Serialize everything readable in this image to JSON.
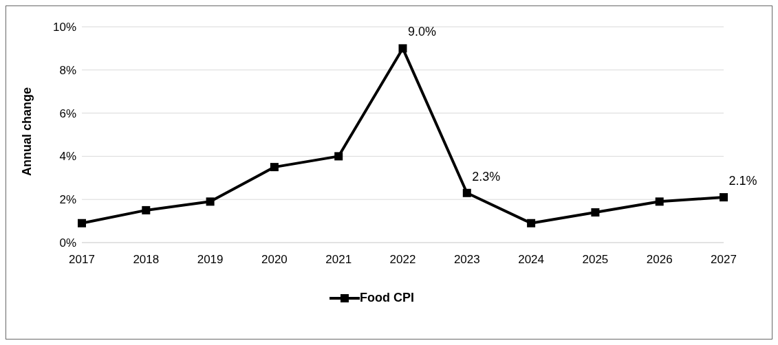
{
  "chart_data": {
    "type": "line",
    "ylabel": "Annual change",
    "categories": [
      "2017",
      "2018",
      "2019",
      "2020",
      "2021",
      "2022",
      "2023",
      "2024",
      "2025",
      "2026",
      "2027"
    ],
    "series": [
      {
        "name": "Food CPI",
        "color": "#000000",
        "values": [
          0.9,
          1.5,
          1.9,
          3.5,
          4.0,
          9.0,
          2.3,
          0.9,
          1.4,
          1.9,
          2.1
        ],
        "value_labels": [
          null,
          null,
          null,
          null,
          null,
          "9.0%",
          "2.3%",
          null,
          null,
          null,
          "2.1%"
        ]
      }
    ],
    "ylim": [
      0,
      10
    ],
    "yticks": [
      {
        "value": 0,
        "label": "0%"
      },
      {
        "value": 2,
        "label": "2%"
      },
      {
        "value": 4,
        "label": "4%"
      },
      {
        "value": 6,
        "label": "6%"
      },
      {
        "value": 8,
        "label": "8%"
      },
      {
        "value": 10,
        "label": "10%"
      }
    ],
    "grid": "y",
    "legend": "bottom",
    "marker": "square",
    "line_style": "solid"
  }
}
